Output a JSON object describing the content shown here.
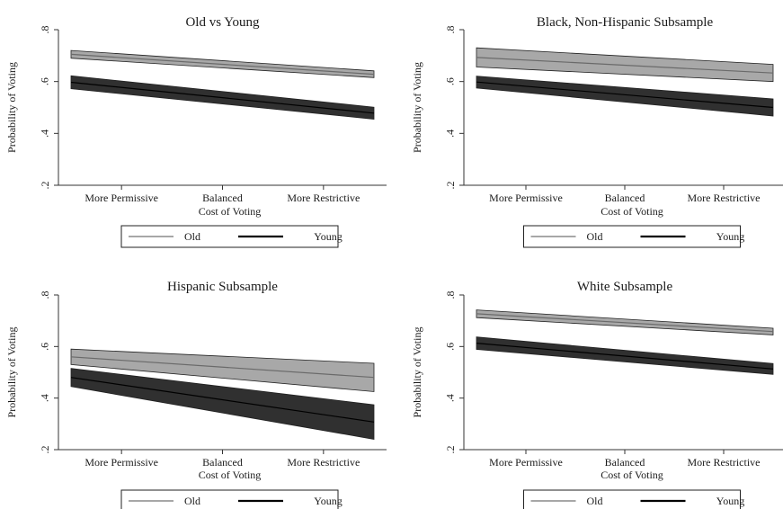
{
  "chart_data": [
    {
      "type": "line",
      "title": "Old vs Young",
      "xlabel": "Cost of Voting",
      "ylabel": "Probability of Voting",
      "categories": [
        "More Permissive",
        "Balanced",
        "More Restrictive"
      ],
      "y_ticks": [
        ".2",
        ".4",
        ".6",
        ".8"
      ],
      "ylim": [
        0.2,
        0.8
      ],
      "x_range": [
        -1.5,
        1.5
      ],
      "grid": false,
      "legend_position": "bottom",
      "series": [
        {
          "name": "Old",
          "color": "#8a8a8a",
          "band_color": "#a8a8a8",
          "x": [
            -1.5,
            1.5
          ],
          "mean": [
            0.705,
            0.628
          ],
          "lower": [
            0.69,
            0.615
          ],
          "upper": [
            0.72,
            0.641
          ]
        },
        {
          "name": "Young",
          "color": "#1a1a1a",
          "band_color": "#303030",
          "x": [
            -1.5,
            1.5
          ],
          "mean": [
            0.597,
            0.478
          ],
          "lower": [
            0.572,
            0.455
          ],
          "upper": [
            0.622,
            0.501
          ]
        }
      ]
    },
    {
      "type": "line",
      "title": "Black, Non-Hispanic Subsample",
      "xlabel": "Cost of Voting",
      "ylabel": "Probability of Voting",
      "categories": [
        "More Permissive",
        "Balanced",
        "More Restrictive"
      ],
      "y_ticks": [
        ".2",
        ".4",
        ".6",
        ".8"
      ],
      "ylim": [
        0.2,
        0.8
      ],
      "x_range": [
        -1.5,
        1.5
      ],
      "grid": false,
      "legend_position": "bottom",
      "series": [
        {
          "name": "Old",
          "color": "#8a8a8a",
          "band_color": "#a8a8a8",
          "x": [
            -1.5,
            1.5
          ],
          "mean": [
            0.693,
            0.633
          ],
          "lower": [
            0.656,
            0.6
          ],
          "upper": [
            0.73,
            0.666
          ]
        },
        {
          "name": "Young",
          "color": "#1a1a1a",
          "band_color": "#303030",
          "x": [
            -1.5,
            1.5
          ],
          "mean": [
            0.598,
            0.5
          ],
          "lower": [
            0.575,
            0.467
          ],
          "upper": [
            0.621,
            0.533
          ]
        }
      ]
    },
    {
      "type": "line",
      "title": "Hispanic Subsample",
      "xlabel": "Cost of Voting",
      "ylabel": "Probability of Voting",
      "categories": [
        "More Permissive",
        "Balanced",
        "More Restrictive"
      ],
      "y_ticks": [
        ".2",
        ".4",
        ".6",
        ".8"
      ],
      "ylim": [
        0.2,
        0.8
      ],
      "x_range": [
        -1.5,
        1.5
      ],
      "grid": false,
      "legend_position": "bottom",
      "series": [
        {
          "name": "Old",
          "color": "#8a8a8a",
          "band_color": "#a8a8a8",
          "x": [
            -1.5,
            1.5
          ],
          "mean": [
            0.56,
            0.48
          ],
          "lower": [
            0.53,
            0.425
          ],
          "upper": [
            0.59,
            0.535
          ]
        },
        {
          "name": "Young",
          "color": "#1a1a1a",
          "band_color": "#303030",
          "x": [
            -1.5,
            1.5
          ],
          "mean": [
            0.48,
            0.307
          ],
          "lower": [
            0.445,
            0.24
          ],
          "upper": [
            0.515,
            0.374
          ]
        }
      ]
    },
    {
      "type": "line",
      "title": "White Subsample",
      "xlabel": "Cost of Voting",
      "ylabel": "Probability of Voting",
      "categories": [
        "More Permissive",
        "Balanced",
        "More Restrictive"
      ],
      "y_ticks": [
        ".2",
        ".4",
        ".6",
        ".8"
      ],
      "ylim": [
        0.2,
        0.8
      ],
      "x_range": [
        -1.5,
        1.5
      ],
      "grid": false,
      "legend_position": "bottom",
      "series": [
        {
          "name": "Old",
          "color": "#8a8a8a",
          "band_color": "#a8a8a8",
          "x": [
            -1.5,
            1.5
          ],
          "mean": [
            0.727,
            0.658
          ],
          "lower": [
            0.712,
            0.645
          ],
          "upper": [
            0.742,
            0.671
          ]
        },
        {
          "name": "Young",
          "color": "#1a1a1a",
          "band_color": "#303030",
          "x": [
            -1.5,
            1.5
          ],
          "mean": [
            0.613,
            0.513
          ],
          "lower": [
            0.589,
            0.492
          ],
          "upper": [
            0.637,
            0.534
          ]
        }
      ]
    }
  ]
}
